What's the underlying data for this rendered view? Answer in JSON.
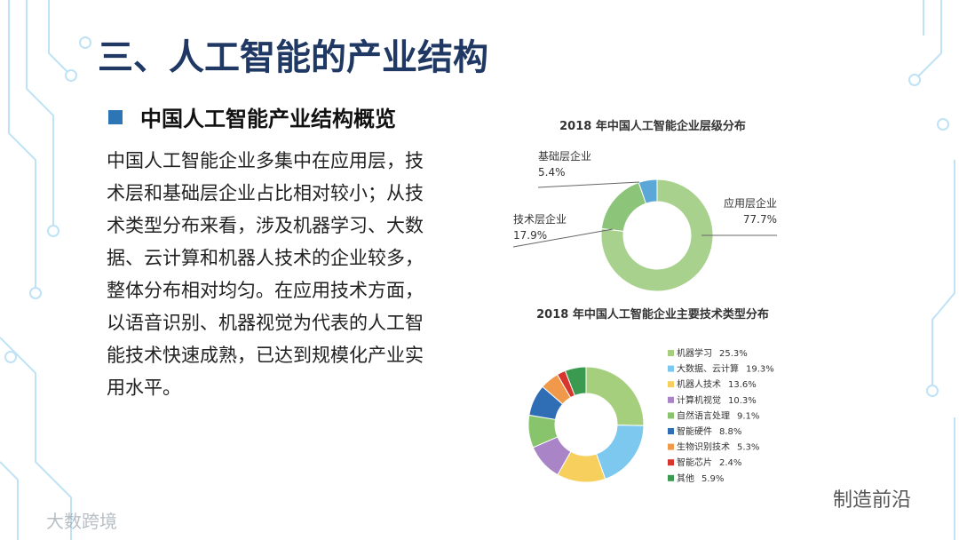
{
  "slide_title": "三、人工智能的产业结构",
  "section_heading": "中国人工智能产业结构概览",
  "paragraph_lines": [
    "中国人工智能企业多集中在应用层，技",
    "术层和基础层企业占比相对较小；从技",
    "术类型分布来看，涉及机器学习、大数",
    "据、云计算和机器人技术的企业较多，",
    "整体分布相对均匀。在应用技术方面，",
    "以语音识别、机器视觉为代表的人工智",
    "能技术快速成熟，已达到规模化产业实",
    "用水平。"
  ],
  "watermark_left": "大数跨境",
  "watermark_right": "制造前沿",
  "chart_data": [
    {
      "type": "donut",
      "title": "2018 年中国人工智能企业层级分布",
      "categories": [
        "应用层企业",
        "技术层企业",
        "基础层企业"
      ],
      "values": [
        77.7,
        17.9,
        5.4
      ],
      "value_labels": [
        "77.7%",
        "17.9%",
        "5.4%"
      ],
      "colors": [
        "#a9d18e",
        "#8cc57a",
        "#5ba8d8"
      ],
      "legend": "callout"
    },
    {
      "type": "donut",
      "title": "2018 年中国人工智能企业主要技术类型分布",
      "categories": [
        "机器学习",
        "大数据、云计算",
        "机器人技术",
        "计算机视觉",
        "自然语言处理",
        "智能硬件",
        "生物识别技术",
        "智能芯片",
        "其他"
      ],
      "values": [
        25.3,
        19.3,
        13.6,
        10.3,
        9.1,
        8.8,
        5.3,
        2.4,
        5.9
      ],
      "value_labels": [
        "25.3%",
        "19.3%",
        "13.6%",
        "10.3%",
        "9.1%",
        "8.8%",
        "5.3%",
        "2.4%",
        "5.9%"
      ],
      "colors": [
        "#a5cf7d",
        "#7cc8ef",
        "#f7cf5c",
        "#a984c6",
        "#88c46c",
        "#2f6db5",
        "#f0994a",
        "#d7362e",
        "#3a9b50"
      ],
      "legend": "right"
    }
  ]
}
